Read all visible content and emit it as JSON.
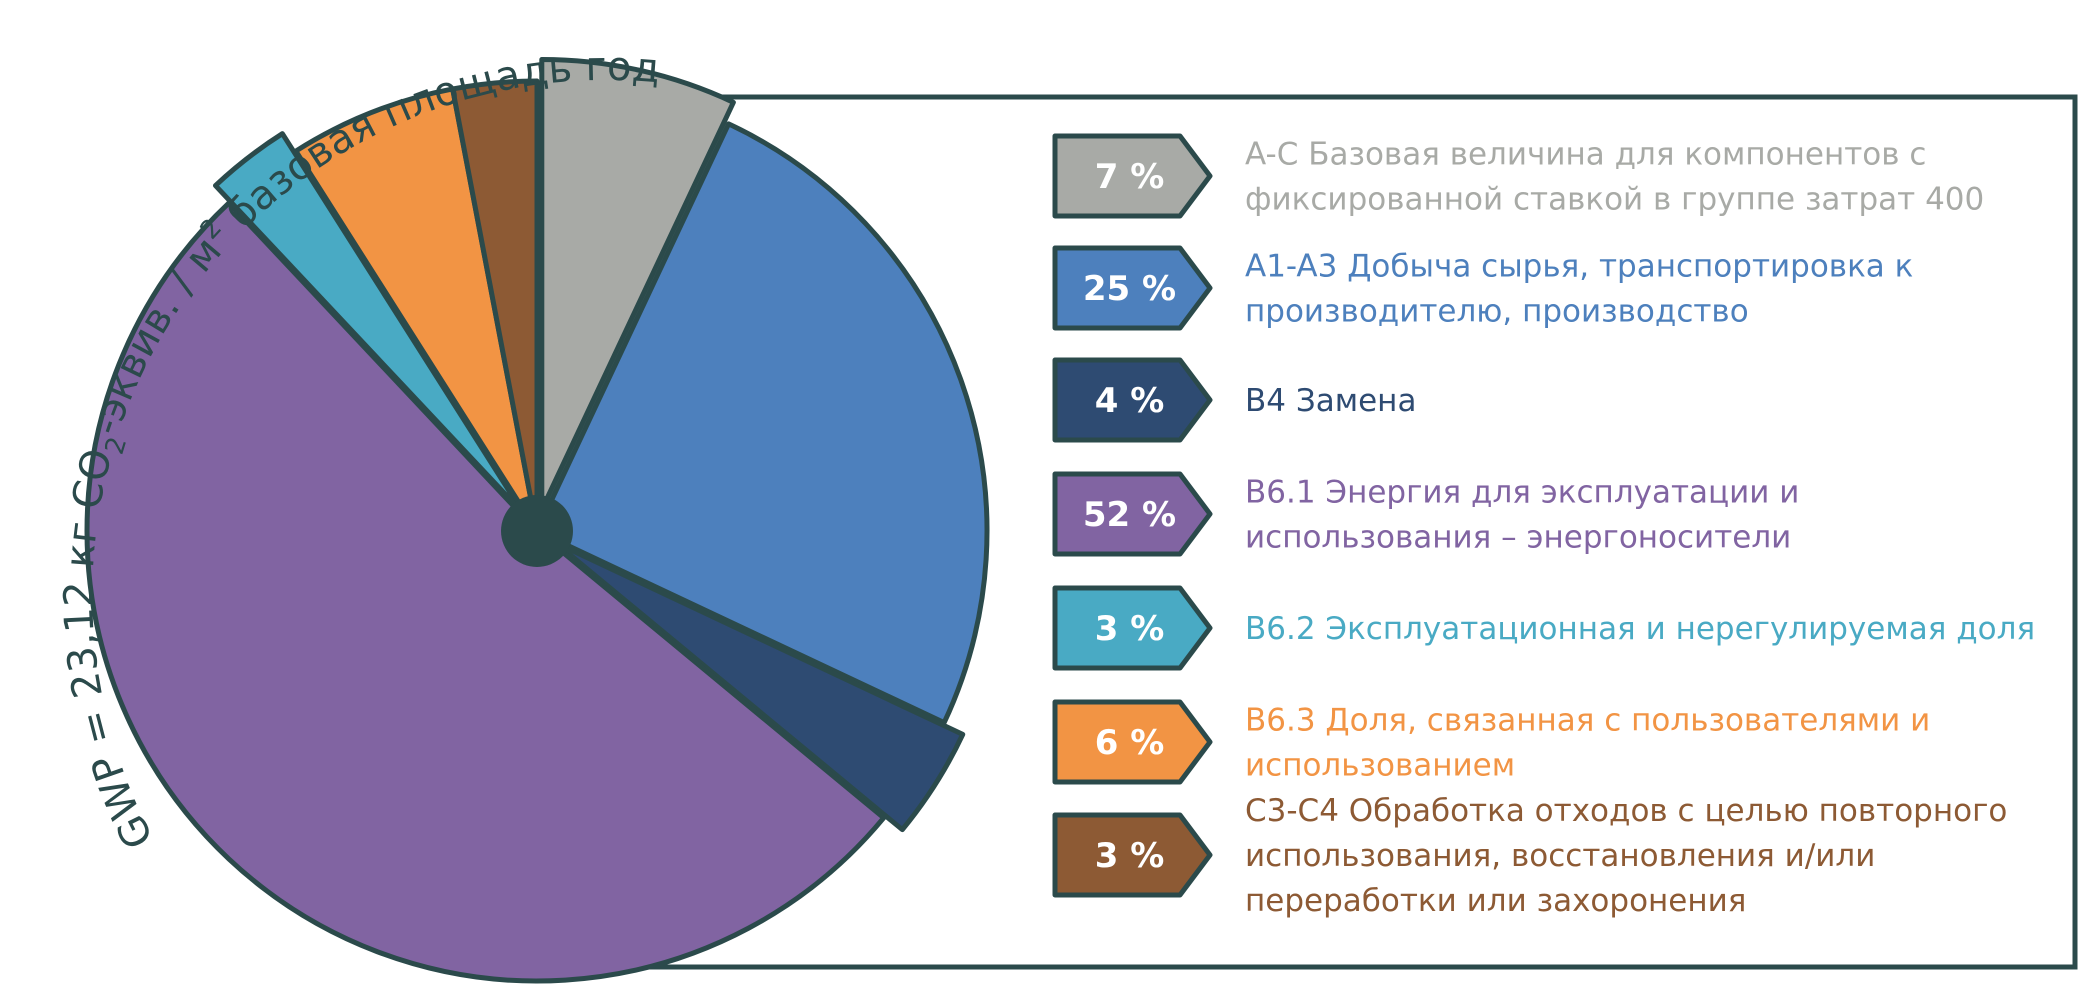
{
  "chart_data": {
    "type": "pie",
    "title": "GWP = 23,12 кг CO₂-эквив. / м² базовая площадь год",
    "title_parts": {
      "before": "GWP = 23,12 кг CO",
      "sub": "2",
      "middle": "-эквив. / м",
      "sup": "2",
      "after": " базовая площадь год"
    },
    "slices": [
      {
        "key": "ac",
        "value": 7,
        "label": "7 %",
        "color": "#a8aaa6",
        "exploded": true,
        "legend": [
          "A-C Базовая величина для компонентов с",
          "фиксированной ставкой в группе затрат 400"
        ]
      },
      {
        "key": "a1a3",
        "value": 25,
        "label": "25 %",
        "color": "#4d80bd",
        "exploded": false,
        "legend": [
          "A1-A3 Добыча сырья, транспортировка к",
          "производителю, производство"
        ]
      },
      {
        "key": "b4",
        "value": 4,
        "label": "4 %",
        "color": "#2e4b72",
        "exploded": true,
        "legend": [
          "B4 Замена"
        ]
      },
      {
        "key": "b61",
        "value": 52,
        "label": "52 %",
        "color": "#8164a2",
        "exploded": false,
        "legend": [
          "B6.1 Энергия для эксплуатации и",
          "использования – энергоносители"
        ]
      },
      {
        "key": "b62",
        "value": 3,
        "label": "3 %",
        "color": "#49aac4",
        "exploded": true,
        "legend": [
          "B6.2 Эксплуатационная и нерегулируемая доля"
        ]
      },
      {
        "key": "b63",
        "value": 6,
        "label": "6 %",
        "color": "#f29444",
        "exploded": false,
        "legend": [
          "B6.3 Доля, связанная с пользователями и",
          "использованием"
        ]
      },
      {
        "key": "c3c4",
        "value": 3,
        "label": "3 %",
        "color": "#8d5a34",
        "exploded": false,
        "legend": [
          "C3-C4 Обработка отходов с целью повторного",
          "использования, восстановления и/или",
          "переработки или захоронения"
        ]
      }
    ],
    "legend_placement": "right",
    "colors": {
      "outline": "#2b4a4b",
      "hub": "#2b4a4b"
    }
  }
}
